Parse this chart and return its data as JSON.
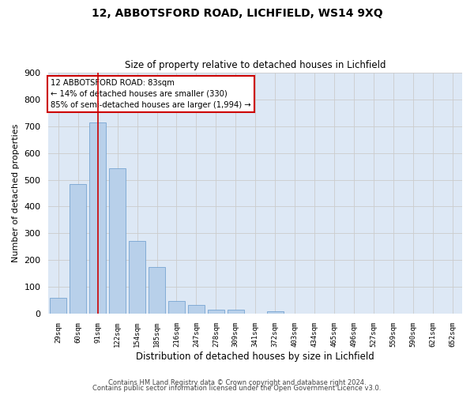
{
  "title1": "12, ABBOTSFORD ROAD, LICHFIELD, WS14 9XQ",
  "title2": "Size of property relative to detached houses in Lichfield",
  "xlabel": "Distribution of detached houses by size in Lichfield",
  "ylabel": "Number of detached properties",
  "categories": [
    "29sqm",
    "60sqm",
    "91sqm",
    "122sqm",
    "154sqm",
    "185sqm",
    "216sqm",
    "247sqm",
    "278sqm",
    "309sqm",
    "341sqm",
    "372sqm",
    "403sqm",
    "434sqm",
    "465sqm",
    "496sqm",
    "527sqm",
    "559sqm",
    "590sqm",
    "621sqm",
    "652sqm"
  ],
  "bar_heights": [
    60,
    483,
    714,
    543,
    272,
    174,
    46,
    32,
    15,
    14,
    0,
    8,
    0,
    0,
    0,
    0,
    0,
    0,
    0,
    0,
    0
  ],
  "bar_color": "#b8d0ea",
  "bar_edge_color": "#6699cc",
  "grid_color": "#cccccc",
  "annotation_box_text": "12 ABBOTSFORD ROAD: 83sqm\n← 14% of detached houses are smaller (330)\n85% of semi-detached houses are larger (1,994) →",
  "annotation_box_color": "#cc0000",
  "vline_x_index": 2,
  "vline_color": "#cc0000",
  "ylim": [
    0,
    900
  ],
  "yticks": [
    0,
    100,
    200,
    300,
    400,
    500,
    600,
    700,
    800,
    900
  ],
  "footer1": "Contains HM Land Registry data © Crown copyright and database right 2024.",
  "footer2": "Contains public sector information licensed under the Open Government Licence v3.0.",
  "bg_color": "#ffffff",
  "plot_bg_color": "#dde8f5"
}
